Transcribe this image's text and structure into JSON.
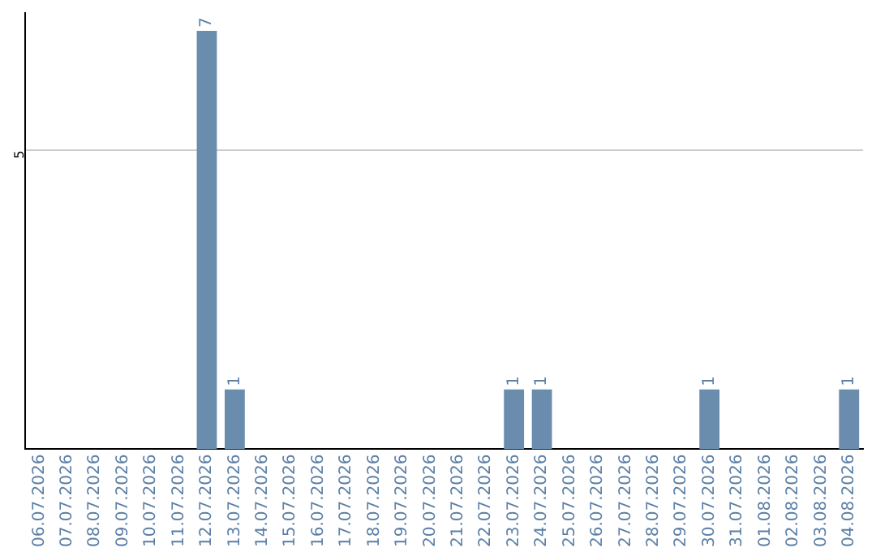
{
  "chart_data": {
    "type": "bar",
    "categories": [
      "06.07.2026",
      "07.07.2026",
      "08.07.2026",
      "09.07.2026",
      "10.07.2026",
      "11.07.2026",
      "12.07.2026",
      "13.07.2026",
      "14.07.2026",
      "15.07.2026",
      "16.07.2026",
      "17.07.2026",
      "18.07.2026",
      "19.07.2026",
      "20.07.2026",
      "21.07.2026",
      "22.07.2026",
      "23.07.2026",
      "24.07.2026",
      "25.07.2026",
      "26.07.2026",
      "27.07.2026",
      "28.07.2026",
      "29.07.2026",
      "30.07.2026",
      "31.07.2026",
      "01.08.2026",
      "02.08.2026",
      "03.08.2026",
      "04.08.2026"
    ],
    "values": [
      0,
      0,
      0,
      0,
      0,
      0,
      7,
      1,
      0,
      0,
      0,
      0,
      0,
      0,
      0,
      0,
      0,
      1,
      1,
      0,
      0,
      0,
      0,
      0,
      1,
      0,
      0,
      0,
      0,
      1
    ],
    "color": "#6a8cad",
    "value_labels": [
      null,
      null,
      null,
      null,
      null,
      null,
      "7",
      "1",
      null,
      null,
      null,
      null,
      null,
      null,
      null,
      null,
      null,
      "1",
      "1",
      null,
      null,
      null,
      null,
      null,
      "1",
      null,
      null,
      null,
      null,
      "1"
    ],
    "ylim": [
      0,
      7.3
    ],
    "yticks": [
      5
    ],
    "grid": "y",
    "legend": false
  }
}
